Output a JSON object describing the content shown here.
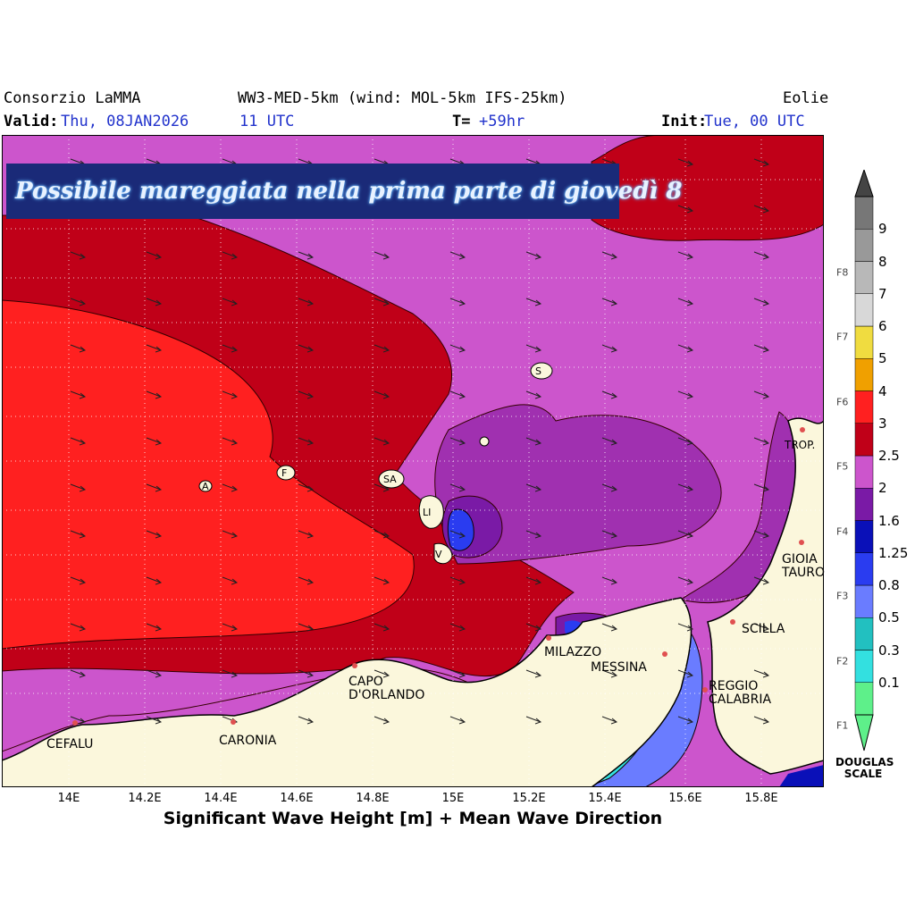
{
  "header": {
    "org": "Consorzio LaMMA",
    "model": "WW3-MED-5km (wind: MOL-5km IFS-25km)",
    "region": "Eolie",
    "valid_label": "Valid:",
    "valid_value": "Thu, 08JAN2026",
    "valid_time": "11 UTC",
    "t_label": "T=",
    "t_value": "+59hr",
    "init_label": "Init:",
    "init_value": "Tue, 00 UTC"
  },
  "banner": {
    "text": "Possibile mareggiata nella prima parte di giovedì 8"
  },
  "x_axis": {
    "ticks": [
      "14E",
      "14.2E",
      "14.4E",
      "14.6E",
      "14.8E",
      "15E",
      "15.2E",
      "15.4E",
      "15.6E",
      "15.8E"
    ],
    "label": "Significant Wave Height [m] + Mean Wave Direction"
  },
  "places": {
    "cefalu": "CEFALU",
    "caronia": "CARONIA",
    "capo": "CAPO D'ORLANDO",
    "milazzo": "MILAZZO",
    "messina": "MESSINA",
    "reggio": "REGGIO CALABRIA",
    "scilla": "SCILLA",
    "gioia": "GIOIA TAURO",
    "trop": "TROP."
  },
  "islands": {
    "alicudi": "A",
    "filicudi": "F",
    "salina": "SA",
    "lipari": "LI",
    "vulcano": "V",
    "stromboli": "S"
  },
  "colorbar": {
    "levels": [
      "0.1",
      "0.3",
      "0.5",
      "0.8",
      "1.25",
      "1.6",
      "2",
      "2.5",
      "3",
      "4",
      "5",
      "6",
      "7",
      "8",
      "9"
    ],
    "colors": [
      "#5ef08a",
      "#33e0e0",
      "#22c0c0",
      "#6a7cff",
      "#2a3cf0",
      "#0a10b8",
      "#7a1aa6",
      "#a030b0",
      "#cc55cc",
      "#c00018",
      "#ff2020",
      "#f0a000",
      "#f0dc40",
      "#d8d8d8",
      "#b8b8b8",
      "#999999",
      "#777777",
      "#555555"
    ],
    "douglas": [
      "F1",
      "F2",
      "F3",
      "F4",
      "F5",
      "F6",
      "F7",
      "F8"
    ],
    "scale_label": "DOUGLAS SCALE"
  }
}
